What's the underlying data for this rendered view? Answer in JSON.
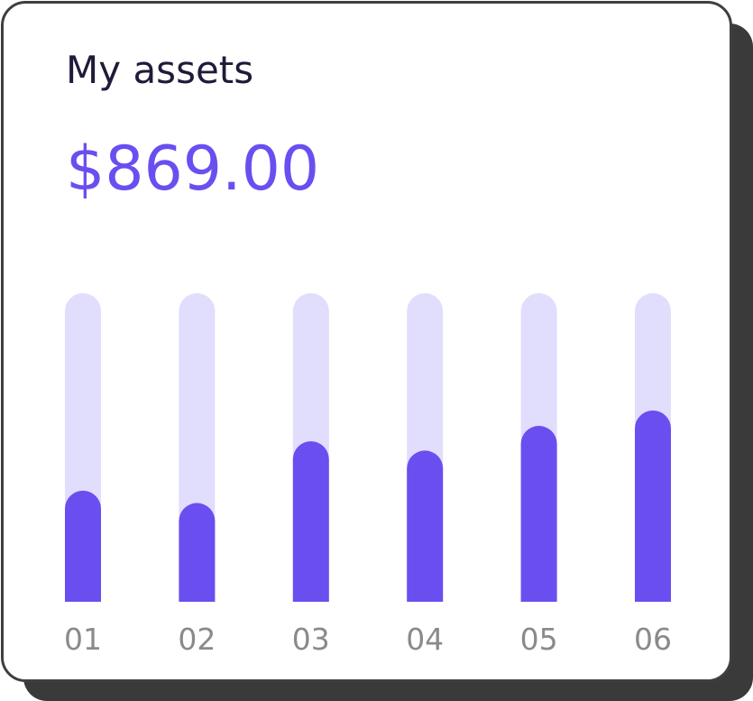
{
  "chart_data": {
    "type": "bar",
    "title": "My assets",
    "subtitle": "$869.00",
    "categories": [
      "01",
      "02",
      "03",
      "04",
      "05",
      "06"
    ],
    "values": [
      36,
      32,
      52,
      49,
      57,
      62
    ],
    "ylim": [
      0,
      100
    ],
    "color": "#6b4ef0",
    "track_color": "#e1ddfc"
  }
}
